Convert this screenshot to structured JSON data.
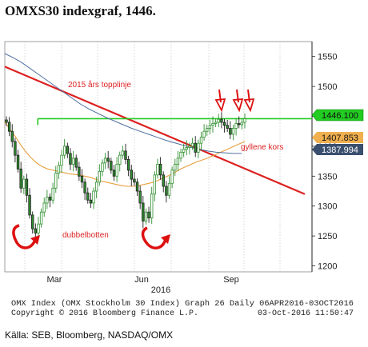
{
  "chart_data": {
    "type": "line",
    "title": "OMXS30 indexgraf, 1446.",
    "y_axis": {
      "side": "right",
      "ticks": [
        1200,
        1250,
        1300,
        1350,
        1400,
        1450,
        1500,
        1550
      ],
      "ylim": [
        1190,
        1575
      ]
    },
    "x_axis": {
      "ticks": [
        "Mar",
        "Jun",
        "Sep"
      ],
      "year_label": "2016",
      "xlim": [
        "2016-01-04",
        "2016-10-28"
      ]
    },
    "grid": "vertical",
    "series": [
      {
        "style": "candlestick",
        "color": "#2e8b2e",
        "close": [
          1440,
          1425,
          1408,
          1385,
          1362,
          1330,
          1345,
          1318,
          1285,
          1262,
          1255,
          1270,
          1290,
          1305,
          1315,
          1310,
          1330,
          1355,
          1368,
          1385,
          1400,
          1388,
          1370,
          1380,
          1365,
          1350,
          1340,
          1322,
          1310,
          1305,
          1325,
          1340,
          1358,
          1372,
          1380,
          1375,
          1360,
          1350,
          1370,
          1385,
          1392,
          1378,
          1360,
          1345,
          1340,
          1325,
          1305,
          1275,
          1290,
          1280,
          1320,
          1352,
          1370,
          1352,
          1333,
          1318,
          1338,
          1360,
          1370,
          1380,
          1390,
          1395,
          1398,
          1400,
          1405,
          1390,
          1405,
          1415,
          1425,
          1430,
          1435,
          1438,
          1440,
          1445,
          1440,
          1435,
          1430,
          1420,
          1430,
          1438,
          1436,
          1440,
          1446
        ]
      },
      {
        "style": "line",
        "color": "#e8a040",
        "values": [
          1440,
          1428,
          1416,
          1402,
          1390,
          1380,
          1372,
          1366,
          1362,
          1360,
          1358,
          1356,
          1354,
          1353,
          1352,
          1350,
          1348,
          1345,
          1342,
          1340,
          1338,
          1336,
          1334,
          1333,
          1333,
          1334,
          1336,
          1338,
          1340,
          1344,
          1348,
          1352,
          1357,
          1362,
          1366,
          1370,
          1374,
          1377,
          1380,
          1384,
          1388,
          1392,
          1396,
          1400,
          1404,
          1407.853
        ]
      },
      {
        "style": "line",
        "color": "#5070a0",
        "values": [
          1555,
          1548,
          1540,
          1530,
          1520,
          1510,
          1500,
          1490,
          1480,
          1470,
          1462,
          1455,
          1448,
          1442,
          1436,
          1430,
          1425,
          1420,
          1415,
          1410,
          1406,
          1402,
          1398,
          1395,
          1392,
          1390,
          1389,
          1388,
          1387.994
        ]
      }
    ],
    "lines": [
      {
        "name": "2015 års topplinje",
        "color": "#dd2020",
        "from": [
          "2016-01-04",
          1533
        ],
        "to": [
          "2016-10-21",
          1320
        ]
      },
      {
        "name": "",
        "color": "#22cc22",
        "from": [
          "2016-02-05",
          1446.1
        ],
        "to": [
          "2016-10-28",
          1446.1
        ]
      }
    ],
    "value_labels": [
      {
        "text": "1446.100",
        "value": 1446.1,
        "color": "#22cc22"
      },
      {
        "text": "1407.853",
        "value": 1407.853,
        "color": "#f0b050"
      },
      {
        "text": "1387.994",
        "value": 1387.994,
        "color": "#3a4f6e"
      }
    ],
    "annotations": {
      "topline_label": "2015 års topplinje",
      "cross_label": "gyllene kors",
      "bottom_label": "dubbelbotten"
    },
    "footer": {
      "line1": "OMX Index (OMX Stockholm 30 Index) Graph 26  Daily 06APR2016-03OCT2016",
      "line2_left": "Copyright © 2016 Bloomberg Finance L.P.",
      "line2_right": "03-Oct-2016 11:50:47"
    }
  },
  "source": "Källa: SEB, Bloomberg, NASDAQ/OMX"
}
